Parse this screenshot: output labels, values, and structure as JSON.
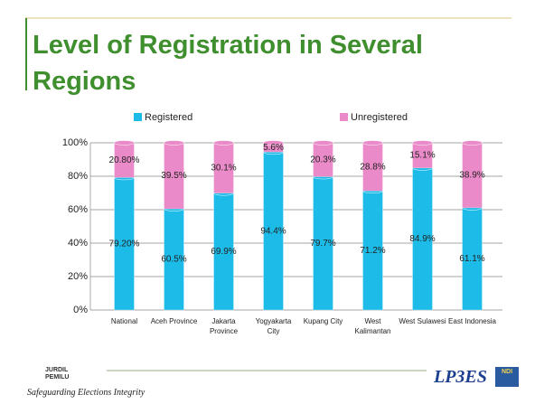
{
  "title": "Level of Registration in Several Regions",
  "chart_data": {
    "type": "bar",
    "stacked": true,
    "categories": [
      "National",
      "Aceh Province",
      "Jakarta Province",
      "Yogyakarta City",
      "Kupang City",
      "West Kalimantan",
      "West Sulawesi",
      "East Indonesia"
    ],
    "series": [
      {
        "name": "Registered",
        "color": "#1cbbe8",
        "values": [
          79.2,
          60.5,
          69.9,
          94.4,
          79.7,
          71.2,
          84.9,
          61.1
        ],
        "value_labels": [
          "79.20%",
          "60.5%",
          "69.9%",
          "94.4%",
          "79.7%",
          "71.2%",
          "84.9%",
          "61.1%"
        ]
      },
      {
        "name": "Unregistered",
        "color": "#ea8ac8",
        "values": [
          20.8,
          39.5,
          30.1,
          5.6,
          20.3,
          28.8,
          15.1,
          38.9
        ],
        "value_labels": [
          "20.80%",
          "39.5%",
          "30.1%",
          "5.6%",
          "20.3%",
          "28.8%",
          "15.1%",
          "38.9%"
        ]
      }
    ],
    "ylim": [
      0,
      100
    ],
    "yticks": [
      {
        "value": 0,
        "label": "0%"
      },
      {
        "value": 20,
        "label": "20%"
      },
      {
        "value": 40,
        "label": "40%"
      },
      {
        "value": 60,
        "label": "60%"
      },
      {
        "value": 80,
        "label": "80%"
      },
      {
        "value": 100,
        "label": "100%"
      }
    ],
    "grid": true,
    "legend": "top"
  },
  "footer": {
    "tagline": "Safeguarding Elections Integrity",
    "logo_left": [
      "JURDIL",
      "PEMILU"
    ],
    "logo_right": "LP3ES",
    "logo_ndi": "NDI"
  }
}
